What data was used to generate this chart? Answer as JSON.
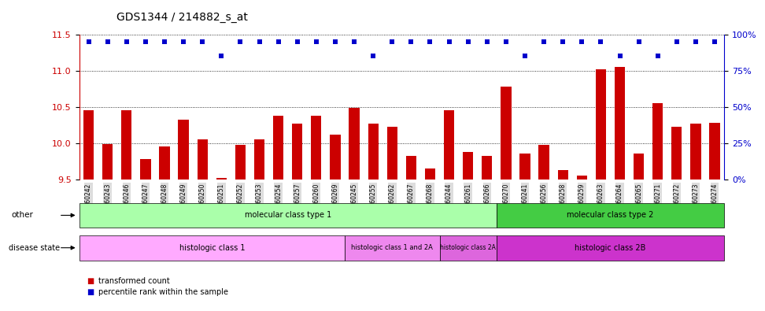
{
  "title": "GDS1344 / 214882_s_at",
  "samples": [
    "GSM60242",
    "GSM60243",
    "GSM60246",
    "GSM60247",
    "GSM60248",
    "GSM60249",
    "GSM60250",
    "GSM60251",
    "GSM60252",
    "GSM60253",
    "GSM60254",
    "GSM60257",
    "GSM60260",
    "GSM60269",
    "GSM60245",
    "GSM60255",
    "GSM60262",
    "GSM60267",
    "GSM60268",
    "GSM60244",
    "GSM60261",
    "GSM60266",
    "GSM60270",
    "GSM60241",
    "GSM60256",
    "GSM60258",
    "GSM60259",
    "GSM60263",
    "GSM60264",
    "GSM60265",
    "GSM60271",
    "GSM60272",
    "GSM60273",
    "GSM60274"
  ],
  "bar_values": [
    10.45,
    9.98,
    10.45,
    9.78,
    9.95,
    10.32,
    10.05,
    9.52,
    9.97,
    10.05,
    10.38,
    10.27,
    10.38,
    10.12,
    10.48,
    10.27,
    10.22,
    9.82,
    9.65,
    10.45,
    9.88,
    9.82,
    10.78,
    9.85,
    9.97,
    9.62,
    9.55,
    11.02,
    11.05,
    9.85,
    10.55,
    10.22,
    10.27,
    10.28
  ],
  "percentile_values": [
    95,
    95,
    95,
    95,
    95,
    95,
    95,
    85,
    95,
    95,
    95,
    95,
    95,
    95,
    95,
    85,
    95,
    95,
    95,
    95,
    95,
    95,
    95,
    85,
    95,
    95,
    95,
    95,
    85,
    95,
    85,
    95,
    95,
    95
  ],
  "bar_color": "#cc0000",
  "dot_color": "#0000cc",
  "ylim_left": [
    9.5,
    11.5
  ],
  "ylim_right": [
    0,
    100
  ],
  "yticks_left": [
    9.5,
    10.0,
    10.5,
    11.0,
    11.5
  ],
  "yticks_right": [
    0,
    25,
    50,
    75,
    100
  ],
  "ytick_labels_right": [
    "0%",
    "25%",
    "50%",
    "75%",
    "100%"
  ],
  "molecular_class_order": [
    "type1",
    "type2"
  ],
  "molecular_class": {
    "type1": {
      "start": 0,
      "end": 22,
      "label": "molecular class type 1",
      "color": "#aaffaa"
    },
    "type2": {
      "start": 22,
      "end": 34,
      "label": "molecular class type 2",
      "color": "#44cc44"
    }
  },
  "histologic_class_order": [
    "class1",
    "class1and2A",
    "class2A",
    "class2B"
  ],
  "histologic_class": {
    "class1": {
      "start": 0,
      "end": 14,
      "label": "histologic class 1",
      "color": "#ffaaff"
    },
    "class1and2A": {
      "start": 14,
      "end": 19,
      "label": "histologic class 1 and 2A",
      "color": "#ee88ee"
    },
    "class2A": {
      "start": 19,
      "end": 22,
      "label": "histologic class 2A",
      "color": "#dd66dd"
    },
    "class2B": {
      "start": 22,
      "end": 34,
      "label": "histologic class 2B",
      "color": "#cc33cc"
    }
  },
  "legend_items": [
    {
      "color": "#cc0000",
      "label": "transformed count"
    },
    {
      "color": "#0000cc",
      "label": "percentile rank within the sample"
    }
  ],
  "band_label_other": "other",
  "band_label_disease": "disease state",
  "title_fontsize": 10,
  "xtick_bg": "#dddddd"
}
